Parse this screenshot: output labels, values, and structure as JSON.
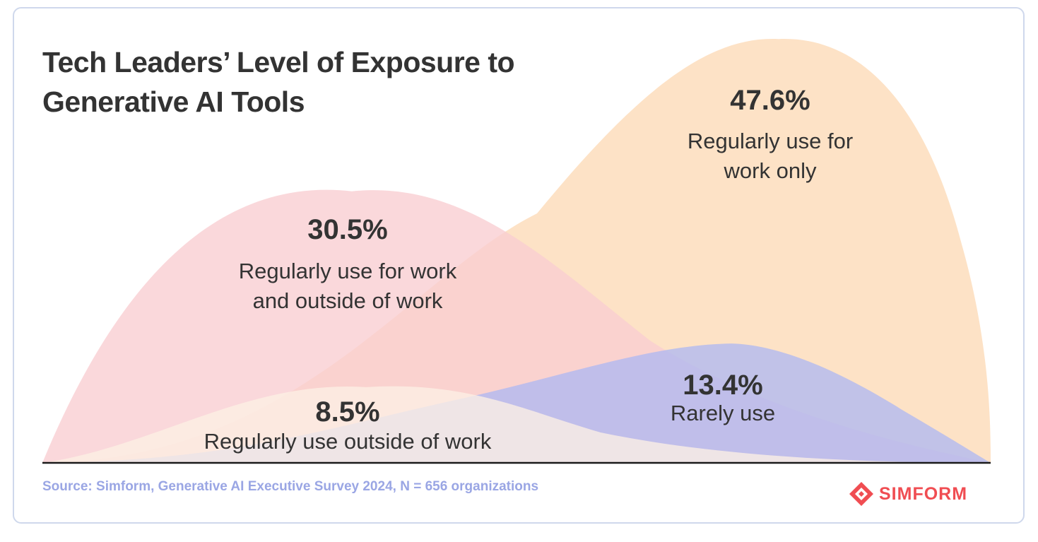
{
  "title": "Tech Leaders’ Level of Exposure to Generative AI Tools",
  "source": "Source: Simform, Generative AI Executive Survey 2024, N = 656 organizations",
  "brand": "SIMFORM",
  "colors": {
    "work_only": "#fddab6",
    "work_and_outside": "#f9cdd1",
    "rarely": "#b0b9f1",
    "outside_only": "#fdf0e4",
    "rarely_tail": "#e2e8f8",
    "text": "#333333",
    "source": "#9aa6e4",
    "brand": "#f04d52"
  },
  "chart_data": {
    "type": "area",
    "series": [
      {
        "key": "work_and_outside",
        "value": 30.5,
        "display": "30.5%",
        "label_lines": [
          "Regularly use for work",
          "and outside of work"
        ]
      },
      {
        "key": "work_only",
        "value": 47.6,
        "display": "47.6%",
        "label_lines": [
          "Regularly use for",
          "work only"
        ]
      },
      {
        "key": "rarely",
        "value": 13.4,
        "display": "13.4%",
        "label_lines": [
          "Rarely use"
        ]
      },
      {
        "key": "outside_only",
        "value": 8.5,
        "display": "8.5%",
        "label_lines": [
          "Regularly use outside of work"
        ]
      }
    ]
  }
}
